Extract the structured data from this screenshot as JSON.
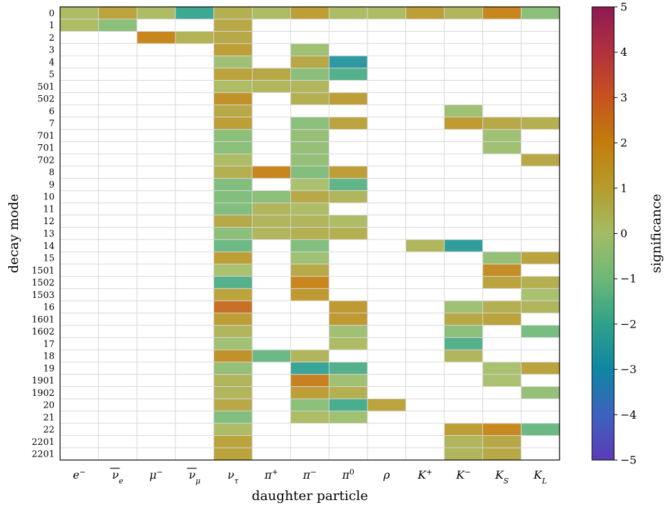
{
  "chart_data": {
    "type": "heatmap",
    "title": "",
    "xlabel": "daughter particle",
    "ylabel": "decay mode",
    "colorbar_label": "significance",
    "color_range": [
      -5,
      5
    ],
    "colorbar_ticks": [
      "5",
      "4",
      "3",
      "2",
      "1",
      "0",
      "−1",
      "−2",
      "−3",
      "−4",
      "−5"
    ],
    "grid": true,
    "x_categories": [
      {
        "base": "e",
        "sup": "−",
        "sub": "",
        "bar": false
      },
      {
        "base": "ν",
        "sup": "",
        "sub": "e",
        "bar": true
      },
      {
        "base": "μ",
        "sup": "−",
        "sub": "",
        "bar": false
      },
      {
        "base": "ν",
        "sup": "",
        "sub": "μ",
        "bar": true
      },
      {
        "base": "ν",
        "sup": "",
        "sub": "τ",
        "bar": false
      },
      {
        "base": "π",
        "sup": "+",
        "sub": "",
        "bar": false
      },
      {
        "base": "π",
        "sup": "−",
        "sub": "",
        "bar": false
      },
      {
        "base": "π",
        "sup": "0",
        "sub": "",
        "bar": false
      },
      {
        "base": "ρ",
        "sup": "",
        "sub": "",
        "bar": false
      },
      {
        "base": "K",
        "sup": "+",
        "sub": "",
        "bar": false
      },
      {
        "base": "K",
        "sup": "−",
        "sub": "",
        "bar": false
      },
      {
        "base": "K",
        "sup": "",
        "sub": "S",
        "bar": false
      },
      {
        "base": "K",
        "sup": "",
        "sub": "L",
        "bar": false
      }
    ],
    "y_categories": [
      "0",
      "1",
      "2",
      "3",
      "4",
      "5",
      "501",
      "502",
      "6",
      "7",
      "701",
      "701",
      "702",
      "8",
      "9",
      "10",
      "11",
      "12",
      "13",
      "14",
      "15",
      "1501",
      "1502",
      "1503",
      "16",
      "1601",
      "1602",
      "17",
      "18",
      "19",
      "1901",
      "1902",
      "20",
      "21",
      "22",
      "2201",
      "2201"
    ],
    "values": [
      [
        0.2,
        1.0,
        0.2,
        -2.0,
        0.6,
        0.2,
        1.2,
        0.2,
        0.2,
        1.2,
        0.4,
        2.0,
        -0.6
      ],
      [
        0.2,
        -0.6,
        null,
        null,
        0.8,
        null,
        null,
        null,
        null,
        null,
        null,
        null,
        null
      ],
      [
        null,
        null,
        2.0,
        0.5,
        0.8,
        null,
        null,
        null,
        null,
        null,
        null,
        null,
        null
      ],
      [
        null,
        null,
        null,
        null,
        1.2,
        null,
        -0.2,
        null,
        null,
        null,
        null,
        null,
        null
      ],
      [
        null,
        null,
        null,
        null,
        -0.2,
        null,
        0.8,
        -2.6,
        null,
        null,
        null,
        null,
        null
      ],
      [
        null,
        null,
        null,
        null,
        1.0,
        0.8,
        -0.6,
        -1.6,
        null,
        null,
        null,
        null,
        null
      ],
      [
        null,
        null,
        null,
        null,
        0.2,
        0.4,
        0.4,
        null,
        null,
        null,
        null,
        null,
        null
      ],
      [
        null,
        null,
        null,
        null,
        1.6,
        null,
        0.6,
        1.2,
        null,
        null,
        null,
        null,
        null
      ],
      [
        null,
        null,
        null,
        null,
        0.8,
        null,
        null,
        null,
        null,
        null,
        -0.2,
        null,
        null
      ],
      [
        null,
        null,
        null,
        null,
        1.2,
        null,
        -0.6,
        1.0,
        null,
        null,
        1.3,
        0.8,
        0.6
      ],
      [
        null,
        null,
        null,
        null,
        -0.6,
        null,
        -0.4,
        null,
        null,
        null,
        null,
        -0.2,
        null
      ],
      [
        null,
        null,
        null,
        null,
        -0.6,
        null,
        -0.4,
        null,
        null,
        null,
        null,
        -0.2,
        null
      ],
      [
        null,
        null,
        null,
        null,
        0.2,
        null,
        -0.4,
        null,
        null,
        null,
        null,
        null,
        0.8
      ],
      [
        null,
        null,
        null,
        null,
        0.6,
        2.0,
        -0.8,
        1.2,
        null,
        null,
        null,
        null,
        null
      ],
      [
        null,
        null,
        null,
        null,
        -0.8,
        null,
        0.0,
        -1.4,
        null,
        null,
        null,
        null,
        null
      ],
      [
        null,
        null,
        null,
        null,
        -0.8,
        -0.6,
        0.8,
        0.4,
        null,
        null,
        null,
        null,
        null
      ],
      [
        null,
        null,
        null,
        null,
        -0.8,
        0.4,
        0.2,
        null,
        null,
        null,
        null,
        null,
        null
      ],
      [
        null,
        null,
        null,
        null,
        0.8,
        0.4,
        0.4,
        0.2,
        null,
        null,
        null,
        null,
        null
      ],
      [
        null,
        null,
        null,
        null,
        -0.6,
        0.4,
        0.6,
        0.6,
        null,
        null,
        null,
        null,
        null
      ],
      [
        null,
        null,
        null,
        null,
        -1.2,
        null,
        -0.8,
        null,
        null,
        0.4,
        -2.4,
        null,
        null
      ],
      [
        null,
        null,
        null,
        null,
        1.2,
        null,
        -0.2,
        null,
        null,
        null,
        null,
        -0.4,
        1.0
      ],
      [
        null,
        null,
        null,
        null,
        0.0,
        null,
        0.8,
        null,
        null,
        null,
        null,
        1.8,
        null
      ],
      [
        null,
        null,
        null,
        null,
        -1.6,
        null,
        2.0,
        null,
        null,
        null,
        null,
        1.0,
        0.6
      ],
      [
        null,
        null,
        null,
        null,
        1.0,
        null,
        1.4,
        null,
        null,
        null,
        null,
        null,
        0.0
      ],
      [
        null,
        null,
        null,
        null,
        2.6,
        null,
        null,
        1.4,
        null,
        null,
        -0.2,
        0.6,
        0.4
      ],
      [
        null,
        null,
        null,
        null,
        1.2,
        null,
        null,
        1.4,
        null,
        null,
        0.8,
        1.0,
        null
      ],
      [
        null,
        null,
        null,
        null,
        0.4,
        null,
        null,
        -0.2,
        null,
        null,
        -0.6,
        null,
        -1.0
      ],
      [
        null,
        null,
        null,
        null,
        -0.2,
        null,
        null,
        0.2,
        null,
        null,
        -1.6,
        null,
        null
      ],
      [
        null,
        null,
        null,
        null,
        1.6,
        -1.2,
        0.4,
        null,
        null,
        null,
        0.4,
        null,
        null
      ],
      [
        null,
        null,
        null,
        null,
        -0.4,
        null,
        -2.2,
        -1.6,
        null,
        null,
        null,
        0.0,
        1.0
      ],
      [
        null,
        null,
        null,
        null,
        0.4,
        null,
        2.2,
        -0.2,
        null,
        null,
        null,
        0.0,
        null
      ],
      [
        null,
        null,
        null,
        null,
        0.4,
        null,
        1.2,
        0.6,
        null,
        null,
        null,
        null,
        -0.4
      ],
      [
        null,
        null,
        null,
        null,
        0.8,
        null,
        -0.6,
        -1.8,
        1.0,
        null,
        null,
        null,
        null
      ],
      [
        null,
        null,
        null,
        null,
        -0.8,
        null,
        0.2,
        -0.2,
        null,
        null,
        null,
        null,
        null
      ],
      [
        null,
        null,
        null,
        null,
        0.2,
        null,
        null,
        null,
        null,
        null,
        1.2,
        1.9,
        -1.2
      ],
      [
        null,
        null,
        null,
        null,
        1.0,
        null,
        null,
        null,
        null,
        null,
        0.4,
        0.8,
        null
      ],
      [
        null,
        null,
        null,
        null,
        1.0,
        null,
        null,
        null,
        null,
        null,
        0.4,
        0.8,
        null
      ]
    ],
    "colormap": [
      "#5b3ab8",
      "#3d62bf",
      "#0e86a3",
      "#2ea18a",
      "#6cb877",
      "#a3bc64",
      "#b59c2c",
      "#c27d0b",
      "#c6531e",
      "#b3303d",
      "#8d1a56"
    ]
  }
}
